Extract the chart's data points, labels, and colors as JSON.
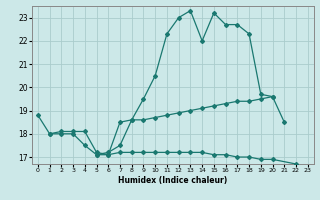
{
  "xlabel": "Humidex (Indice chaleur)",
  "ylabel": "",
  "background_color": "#cce8e8",
  "grid_color": "#aacccc",
  "line_color": "#1a7870",
  "xlim": [
    -0.5,
    23.5
  ],
  "ylim": [
    16.7,
    23.5
  ],
  "yticks": [
    17,
    18,
    19,
    20,
    21,
    22,
    23
  ],
  "xticks": [
    0,
    1,
    2,
    3,
    4,
    5,
    6,
    7,
    8,
    9,
    10,
    11,
    12,
    13,
    14,
    15,
    16,
    17,
    18,
    19,
    20,
    21,
    22,
    23
  ],
  "line1_x": [
    0,
    1,
    2,
    3,
    4,
    5,
    6,
    7,
    8,
    9,
    10,
    11,
    12,
    13,
    14,
    15,
    16,
    17,
    18,
    19,
    20,
    21
  ],
  "line1_y": [
    18.8,
    18.0,
    18.0,
    18.0,
    17.5,
    17.1,
    17.2,
    17.5,
    18.6,
    19.5,
    20.5,
    22.3,
    23.0,
    23.3,
    22.0,
    23.2,
    22.7,
    22.7,
    22.3,
    19.7,
    19.6,
    18.5
  ],
  "line2_x": [
    1,
    2,
    3,
    4,
    5,
    6,
    7,
    8,
    9,
    10,
    11,
    12,
    13,
    14,
    15,
    16,
    17,
    18,
    19,
    20
  ],
  "line2_y": [
    18.0,
    18.1,
    18.1,
    18.1,
    17.2,
    17.1,
    18.5,
    18.6,
    18.6,
    18.7,
    18.8,
    18.9,
    19.0,
    19.1,
    19.2,
    19.3,
    19.4,
    19.4,
    19.5,
    19.6
  ],
  "line3_x": [
    5,
    6,
    7,
    8,
    9,
    10,
    11,
    12,
    13,
    14,
    15,
    16,
    17,
    18,
    19,
    20,
    22
  ],
  "line3_y": [
    17.1,
    17.1,
    17.2,
    17.2,
    17.2,
    17.2,
    17.2,
    17.2,
    17.2,
    17.2,
    17.1,
    17.1,
    17.0,
    17.0,
    16.9,
    16.9,
    16.7
  ]
}
